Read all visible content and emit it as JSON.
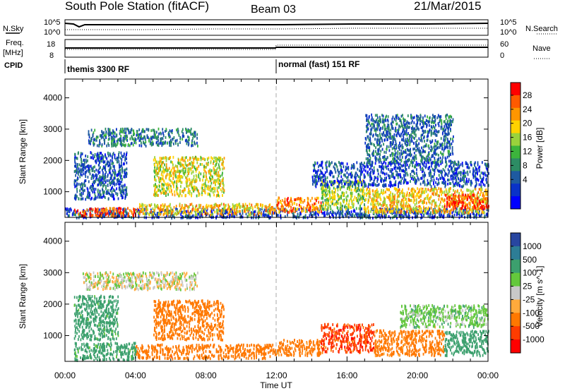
{
  "header": {
    "station": "South Pole Station (fitACF)",
    "beam": "Beam 03",
    "date": "21/Mar/2015"
  },
  "strips": {
    "nsky_label": "N.Sky",
    "nsearch_label": "N.Search",
    "nsky_ticks": [
      "10^5",
      "10^0"
    ],
    "nsearch_ticks": [
      "10^5",
      "10^0"
    ],
    "freq_label_1": "Freq.",
    "freq_label_2": "[MHz]",
    "freq_ticks": [
      "18",
      "8"
    ],
    "nave_label": "Nave",
    "nave_ticks": [
      "60",
      "0"
    ],
    "cpid_label": "CPID",
    "cpid_segments": [
      {
        "label": "themis 3300 RF",
        "start_hour": 0
      },
      {
        "label": "normal (fast) 151 RF",
        "start_hour": 12
      }
    ]
  },
  "x_axis": {
    "label": "Time UT",
    "ticks": [
      "00:00",
      "04:00",
      "08:00",
      "12:00",
      "16:00",
      "20:00",
      "00:00"
    ]
  },
  "power_colorbar": {
    "label": "Power [dB]",
    "ticks": [
      "28",
      "24",
      "20",
      "16",
      "12",
      "8",
      "4"
    ],
    "colors": [
      "#ff0000",
      "#ff5a00",
      "#ff9600",
      "#ffd200",
      "#9ad23c",
      "#3cb43c",
      "#2d8c64",
      "#1e5aa0",
      "#0a32c8",
      "#0000ff"
    ]
  },
  "velocity_colorbar": {
    "label": "Velocity [m s^-1]",
    "ticks": [
      "1000",
      "500",
      "100",
      "25",
      "-25",
      "-100",
      "-500",
      "-1000"
    ],
    "colors": [
      "#2846a0",
      "#2d7d96",
      "#3ca06e",
      "#64c83c",
      "#c8c8c8",
      "#ffaa3c",
      "#ff7800",
      "#ff3c00",
      "#ff0000"
    ]
  },
  "chart_data": [
    {
      "type": "heatmap",
      "panel": "power",
      "ylabel": "Slant Range [km]",
      "xlabel": "",
      "ylim": [
        180,
        4600
      ],
      "xlim": [
        0,
        24
      ],
      "yticks": [
        1000,
        2000,
        3000,
        4000
      ],
      "colorbar": "Power [dB]",
      "regions": [
        {
          "t0": 0.0,
          "t1": 24.0,
          "r0": 200,
          "r1": 500,
          "value": 6
        },
        {
          "t0": 0.5,
          "t1": 4.0,
          "r0": 250,
          "r1": 520,
          "value": 26
        },
        {
          "t0": 4.0,
          "t1": 12.0,
          "r0": 300,
          "r1": 650,
          "value": 20
        },
        {
          "t0": 12.0,
          "t1": 14.5,
          "r0": 380,
          "r1": 850,
          "value": 24
        },
        {
          "t0": 14.5,
          "t1": 17.0,
          "r0": 450,
          "r1": 1400,
          "value": 16
        },
        {
          "t0": 17.0,
          "t1": 24.0,
          "r0": 350,
          "r1": 1150,
          "value": 20
        },
        {
          "t0": 21.5,
          "t1": 24.0,
          "r0": 500,
          "r1": 950,
          "value": 26
        },
        {
          "t0": 5.0,
          "t1": 9.0,
          "r0": 900,
          "r1": 2150,
          "value": 18
        },
        {
          "t0": 1.3,
          "t1": 7.5,
          "r0": 2500,
          "r1": 3050,
          "value": 9
        },
        {
          "t0": 0.5,
          "t1": 3.5,
          "r0": 800,
          "r1": 2300,
          "value": 7
        },
        {
          "t0": 14.0,
          "t1": 24.0,
          "r0": 1200,
          "r1": 2000,
          "value": 6
        },
        {
          "t0": 17.0,
          "t1": 22.0,
          "r0": 2000,
          "r1": 3500,
          "value": 8
        }
      ]
    },
    {
      "type": "heatmap",
      "panel": "velocity",
      "ylabel": "Slant Range [km]",
      "xlabel": "Time UT",
      "ylim": [
        180,
        4600
      ],
      "xlim": [
        0,
        24
      ],
      "yticks": [
        1000,
        2000,
        3000,
        4000
      ],
      "colorbar": "Velocity [m s^-1]",
      "regions": [
        {
          "t0": 0.5,
          "t1": 4.0,
          "r0": 250,
          "r1": 800,
          "value": 200
        },
        {
          "t0": 4.0,
          "t1": 12.0,
          "r0": 300,
          "r1": 750,
          "value": -300
        },
        {
          "t0": 12.0,
          "t1": 14.5,
          "r0": 400,
          "r1": 900,
          "value": -200
        },
        {
          "t0": 14.5,
          "t1": 17.5,
          "r0": 500,
          "r1": 1400,
          "value": -800
        },
        {
          "t0": 17.5,
          "t1": 21.5,
          "r0": 400,
          "r1": 1200,
          "value": -200
        },
        {
          "t0": 21.5,
          "t1": 24.0,
          "r0": 400,
          "r1": 1200,
          "value": 300
        },
        {
          "t0": 5.0,
          "t1": 9.0,
          "r0": 900,
          "r1": 2150,
          "value": -250
        },
        {
          "t0": 1.0,
          "t1": 7.5,
          "r0": 2500,
          "r1": 3050,
          "value": 0
        },
        {
          "t0": 0.5,
          "t1": 3.0,
          "r0": 900,
          "r1": 2300,
          "value": 200
        },
        {
          "t0": 19.0,
          "t1": 24.0,
          "r0": 1300,
          "r1": 2000,
          "value": 60
        }
      ]
    }
  ]
}
